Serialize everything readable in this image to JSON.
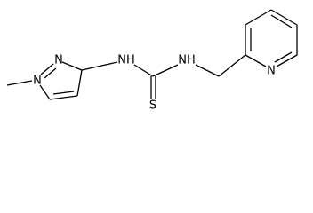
{
  "atoms": [
    {
      "label": "N"
    },
    {
      "label": "N"
    },
    {
      "label": "NH"
    },
    {
      "label": "S"
    },
    {
      "label": "NH"
    },
    {
      "label": "N"
    }
  ]
}
